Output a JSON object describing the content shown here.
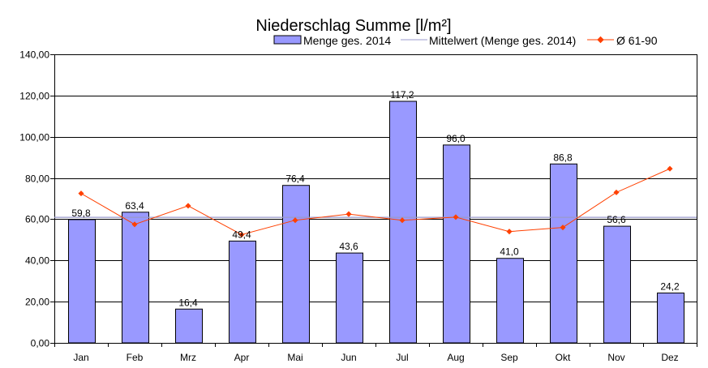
{
  "chart_data": {
    "type": "bar",
    "title": "Niederschlag Summe [l/m²]",
    "categories": [
      "Jan",
      "Feb",
      "Mrz",
      "Apr",
      "Mai",
      "Jun",
      "Jul",
      "Aug",
      "Sep",
      "Okt",
      "Nov",
      "Dez"
    ],
    "series": [
      {
        "name": "Menge ges. 2014",
        "kind": "bar",
        "color": "#9999ff",
        "values": [
          59.8,
          63.4,
          16.4,
          49.4,
          76.4,
          43.6,
          117.2,
          96.0,
          41.0,
          86.8,
          56.6,
          24.2
        ],
        "labels": [
          "59,8",
          "63,4",
          "16,4",
          "49,4",
          "76,4",
          "43,6",
          "117,2",
          "96,0",
          "41,0",
          "86,8",
          "56,6",
          "24,2"
        ]
      },
      {
        "name": "Mittelwert (Menge ges. 2014)",
        "kind": "hline",
        "color": "#9999cc",
        "value": 60.9
      },
      {
        "name": "Ø 61-90",
        "kind": "line",
        "color": "#ff4000",
        "values": [
          72.5,
          57.5,
          66.5,
          52.5,
          59.5,
          62.5,
          59.5,
          61.0,
          54.0,
          56.0,
          73.0,
          84.5
        ]
      }
    ],
    "ylim": [
      0,
      140
    ],
    "yticks": [
      "0,00",
      "20,00",
      "40,00",
      "60,00",
      "80,00",
      "100,00",
      "120,00",
      "140,00"
    ],
    "ystep": 20,
    "grid": true,
    "legend": "top"
  }
}
